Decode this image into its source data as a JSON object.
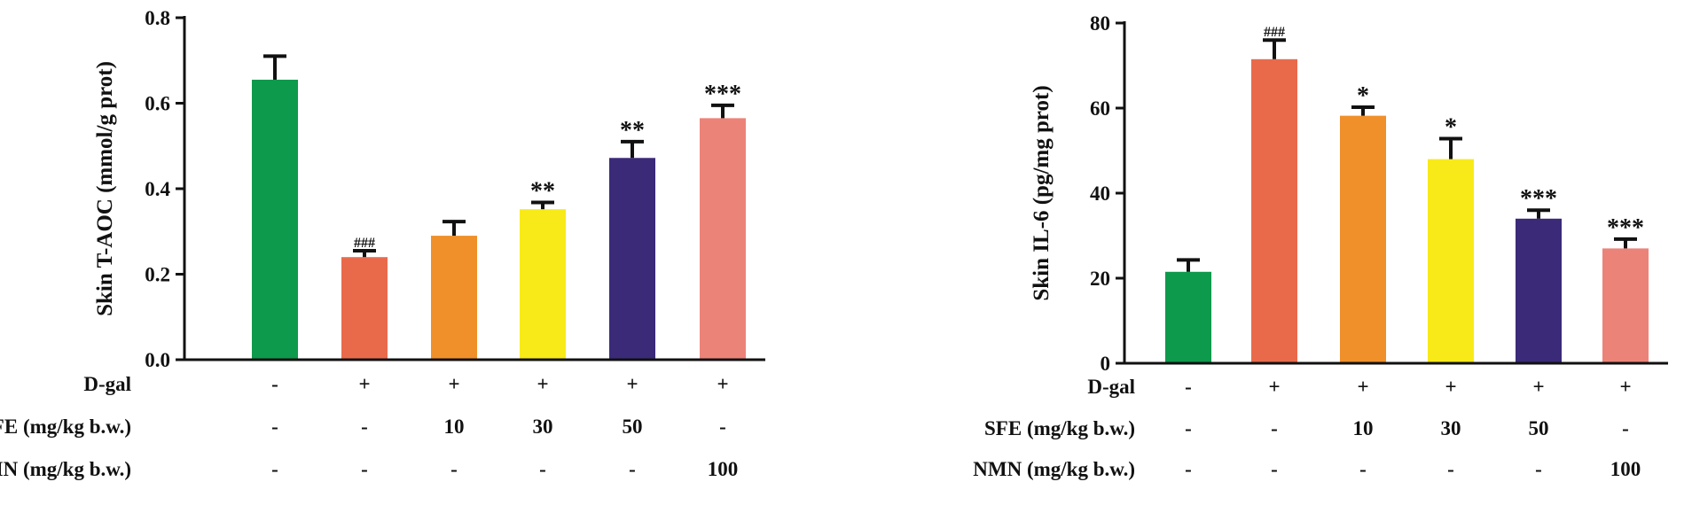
{
  "chart_data": [
    {
      "type": "bar",
      "ylabel": "Skin T-AOC (mmol/g prot)",
      "ylim": [
        0,
        0.8
      ],
      "yticks": [
        "0.0",
        "0.2",
        "0.4",
        "0.6",
        "0.8"
      ],
      "ytick_values": [
        0,
        0.2,
        0.4,
        0.6,
        0.8
      ],
      "colors": [
        "#0e9a4c",
        "#e96a4b",
        "#f0902a",
        "#f8ea18",
        "#3b2a78",
        "#ec8379"
      ],
      "values": [
        0.655,
        0.24,
        0.29,
        0.352,
        0.472,
        0.565
      ],
      "errors": [
        0.055,
        0.015,
        0.033,
        0.016,
        0.038,
        0.03
      ],
      "significance": [
        "",
        "###",
        "",
        "**",
        "**",
        "***"
      ],
      "rows": [
        {
          "label": "D-gal",
          "values": [
            "-",
            "+",
            "+",
            "+",
            "+",
            "+"
          ]
        },
        {
          "label": "SFE (mg/kg b.w.)",
          "values": [
            "-",
            "-",
            "10",
            "30",
            "50",
            "-"
          ]
        },
        {
          "label": "NMN (mg/kg b.w.)",
          "values": [
            "-",
            "-",
            "-",
            "-",
            "-",
            "100"
          ]
        }
      ]
    },
    {
      "type": "bar",
      "ylabel": "Skin IL-6 (pg/mg prot)",
      "ylim": [
        0,
        80
      ],
      "yticks": [
        "0",
        "20",
        "40",
        "60",
        "80"
      ],
      "ytick_values": [
        0,
        20,
        40,
        60,
        80
      ],
      "colors": [
        "#0e9a4c",
        "#e96a4b",
        "#f0902a",
        "#f8ea18",
        "#3b2a78",
        "#ec8379"
      ],
      "values": [
        21.5,
        71.5,
        58.2,
        48.0,
        34.0,
        27.0
      ],
      "errors": [
        2.8,
        4.5,
        2.0,
        4.8,
        2.0,
        2.2
      ],
      "significance": [
        "",
        "###",
        "*",
        "*",
        "***",
        "***"
      ],
      "rows": [
        {
          "label": "D-gal",
          "values": [
            "-",
            "+",
            "+",
            "+",
            "+",
            "+"
          ]
        },
        {
          "label": "SFE (mg/kg b.w.)",
          "values": [
            "-",
            "-",
            "10",
            "30",
            "50",
            "-"
          ]
        },
        {
          "label": "NMN (mg/kg b.w.)",
          "values": [
            "-",
            "-",
            "-",
            "-",
            "-",
            "100"
          ]
        }
      ]
    }
  ]
}
